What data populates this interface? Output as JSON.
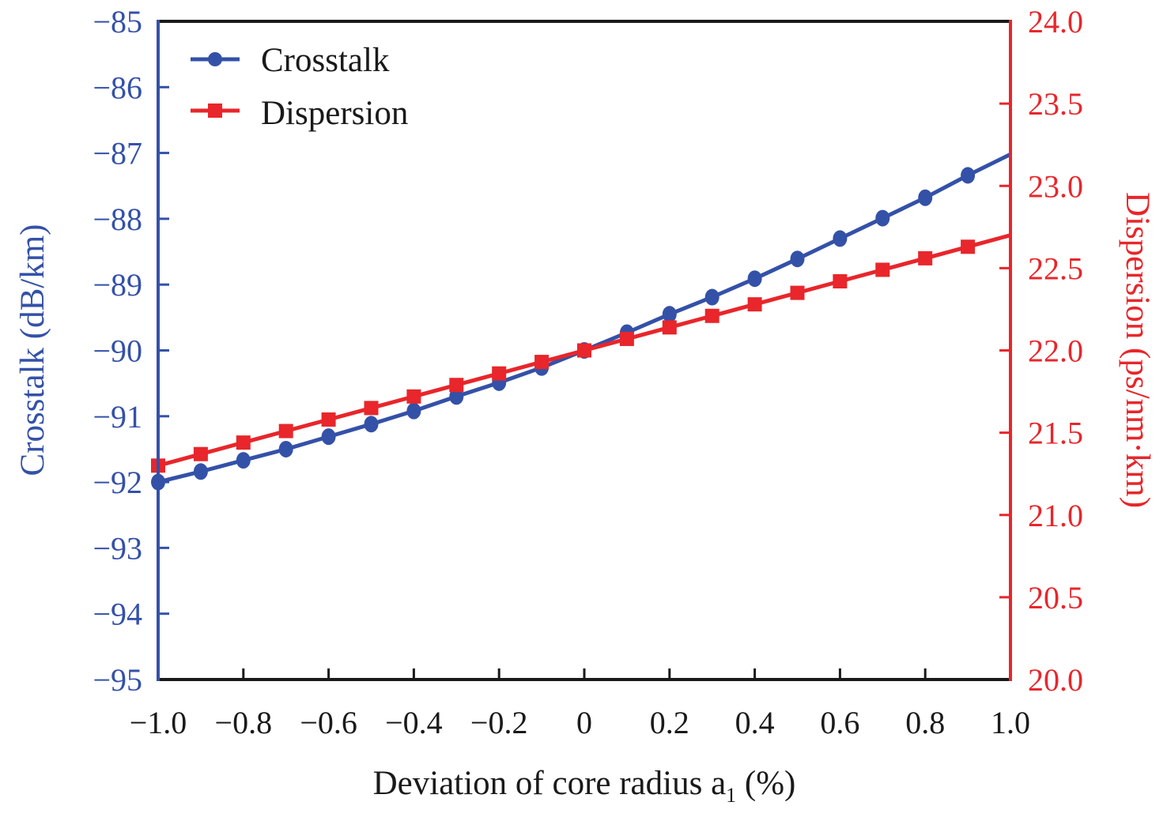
{
  "colors": {
    "crosstalk": "#3451a8",
    "dispersion": "#e8262b",
    "axis": "#1a1a1a",
    "text": "#1a1a1a"
  },
  "chart_data": {
    "type": "line",
    "title": "",
    "xlabel": "Deviation of core radius a",
    "xlabel_subscript": "1",
    "xlabel_suffix": " (%)",
    "ylabel_left": "Crosstalk (dB/km)",
    "ylabel_right": "Dispersion (ps/nm·km)",
    "xlim": [
      -1.0,
      1.0
    ],
    "ylim_left": [
      -95,
      -85
    ],
    "ylim_right": [
      20.0,
      24.0
    ],
    "x_ticks": [
      -1.0,
      -0.8,
      -0.6,
      -0.4,
      -0.2,
      0,
      0.2,
      0.4,
      0.6,
      0.8,
      1.0
    ],
    "x_tick_labels": [
      "−1.0",
      "−0.8",
      "−0.6",
      "−0.4",
      "−0.2",
      "0",
      "0.2",
      "0.4",
      "0.6",
      "0.8",
      "1.0"
    ],
    "y_left_ticks": [
      -85,
      -86,
      -87,
      -88,
      -89,
      -90,
      -91,
      -92,
      -93,
      -94,
      -95
    ],
    "y_left_tick_labels": [
      "−85",
      "−86",
      "−87",
      "−88",
      "−89",
      "−90",
      "−91",
      "−92",
      "−93",
      "−94",
      "−95"
    ],
    "y_right_ticks": [
      24.0,
      23.5,
      23.0,
      22.5,
      22.0,
      21.5,
      21.0,
      20.5,
      20.0
    ],
    "y_right_tick_labels": [
      "24.0",
      "23.5",
      "23.0",
      "22.5",
      "22.0",
      "21.5",
      "21.0",
      "20.5",
      "20.0"
    ],
    "grid": false,
    "legend_position": "top-left",
    "series": [
      {
        "name": "Crosstalk",
        "axis": "left",
        "marker": "circle",
        "x": [
          -1.0,
          -0.9,
          -0.8,
          -0.7,
          -0.6,
          -0.5,
          -0.4,
          -0.3,
          -0.2,
          -0.1,
          0,
          0.1,
          0.2,
          0.3,
          0.4,
          0.5,
          0.6,
          0.7,
          0.8,
          0.9
        ],
        "values": [
          -92.0,
          -91.84,
          -91.67,
          -91.5,
          -91.31,
          -91.12,
          -90.92,
          -90.7,
          -90.49,
          -90.26,
          -90.0,
          -89.73,
          -89.45,
          -89.19,
          -88.91,
          -88.61,
          -88.3,
          -87.99,
          -87.68,
          -87.34
        ],
        "line_end": {
          "x": 1.0,
          "value": -87.02
        }
      },
      {
        "name": "Dispersion",
        "axis": "right",
        "marker": "square",
        "x": [
          -1.0,
          -0.9,
          -0.8,
          -0.7,
          -0.6,
          -0.5,
          -0.4,
          -0.3,
          -0.2,
          -0.1,
          0,
          0.1,
          0.2,
          0.3,
          0.4,
          0.5,
          0.6,
          0.7,
          0.8,
          0.9
        ],
        "values": [
          21.3,
          21.37,
          21.44,
          21.51,
          21.58,
          21.65,
          21.72,
          21.79,
          21.86,
          21.93,
          22.0,
          22.07,
          22.14,
          22.21,
          22.28,
          22.35,
          22.42,
          22.49,
          22.56,
          22.63
        ],
        "line_end": {
          "x": 1.0,
          "value": 22.7
        }
      }
    ]
  }
}
